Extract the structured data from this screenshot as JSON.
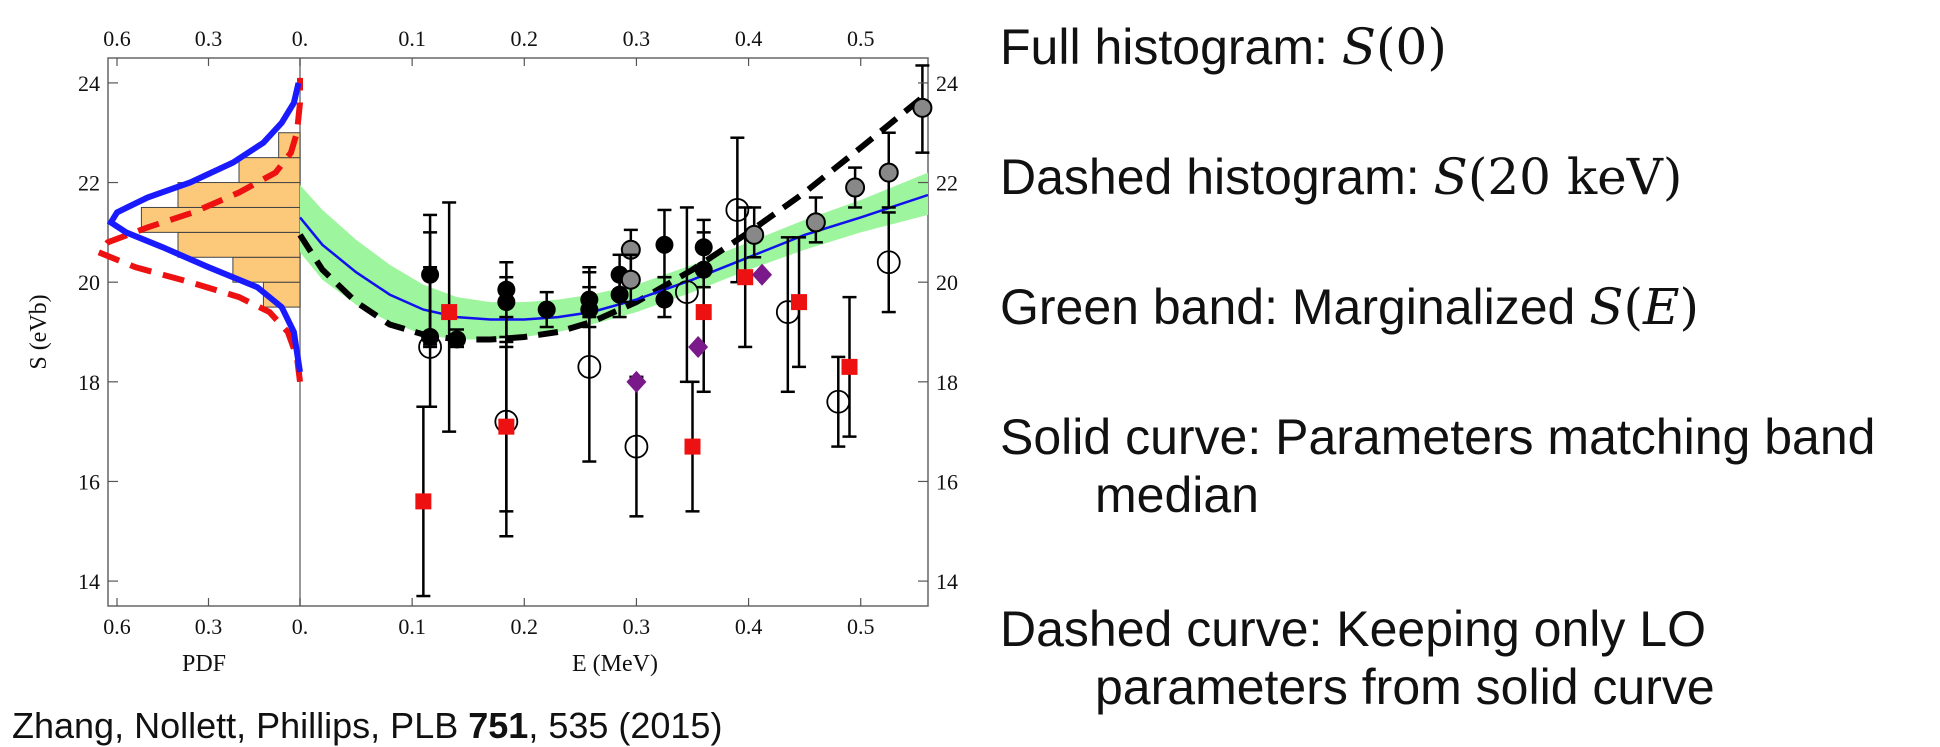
{
  "chart_data": {
    "type": "scatter",
    "xlabel": "E (MeV)",
    "ylabel": "S (eVb)",
    "pdf_label": "PDF",
    "xlim": [
      0,
      0.56
    ],
    "ylim": [
      13.5,
      24.5
    ],
    "x_ticks": [
      "0.",
      "0.1",
      "0.2",
      "0.3",
      "0.4",
      "0.5"
    ],
    "pdf_ticks": [
      "0.6",
      "0.3",
      "0."
    ],
    "y_ticks": [
      "14",
      "16",
      "18",
      "20",
      "22",
      "24"
    ],
    "histogram_full": {
      "bins": [
        {
          "y0": 19.5,
          "y1": 20.0,
          "pdf": 0.12
        },
        {
          "y0": 20.0,
          "y1": 20.5,
          "pdf": 0.22
        },
        {
          "y0": 20.5,
          "y1": 21.0,
          "pdf": 0.4
        },
        {
          "y0": 21.0,
          "y1": 21.5,
          "pdf": 0.52
        },
        {
          "y0": 21.5,
          "y1": 22.0,
          "pdf": 0.4
        },
        {
          "y0": 22.0,
          "y1": 22.5,
          "pdf": 0.2
        },
        {
          "y0": 22.5,
          "y1": 23.0,
          "pdf": 0.07
        }
      ],
      "color": "#fcc87a"
    },
    "pdf_curve_solid": {
      "points": [
        [
          18.2,
          0.0
        ],
        [
          18.6,
          0.01
        ],
        [
          19.0,
          0.02
        ],
        [
          19.5,
          0.06
        ],
        [
          19.9,
          0.14
        ],
        [
          20.3,
          0.3
        ],
        [
          20.7,
          0.45
        ],
        [
          21.0,
          0.57
        ],
        [
          21.2,
          0.62
        ],
        [
          21.4,
          0.6
        ],
        [
          21.7,
          0.5
        ],
        [
          22.0,
          0.36
        ],
        [
          22.4,
          0.22
        ],
        [
          22.8,
          0.12
        ],
        [
          23.2,
          0.06
        ],
        [
          23.6,
          0.02
        ],
        [
          24.0,
          0.005
        ]
      ],
      "color": "#1a1aff"
    },
    "pdf_curve_dashed": {
      "points": [
        [
          18.0,
          0.0
        ],
        [
          18.5,
          0.01
        ],
        [
          19.0,
          0.04
        ],
        [
          19.4,
          0.1
        ],
        [
          19.7,
          0.2
        ],
        [
          20.0,
          0.36
        ],
        [
          20.3,
          0.54
        ],
        [
          20.6,
          0.66
        ],
        [
          20.8,
          0.63
        ],
        [
          21.1,
          0.5
        ],
        [
          21.4,
          0.35
        ],
        [
          21.8,
          0.2
        ],
        [
          22.2,
          0.08
        ],
        [
          22.6,
          0.03
        ],
        [
          23.0,
          0.01
        ],
        [
          23.6,
          0.0
        ],
        [
          24.1,
          0.0
        ]
      ],
      "color": "#ee1111"
    },
    "band": {
      "x": [
        0,
        0.02,
        0.05,
        0.08,
        0.11,
        0.14,
        0.17,
        0.2,
        0.23,
        0.26,
        0.3,
        0.35,
        0.4,
        0.45,
        0.5,
        0.56
      ],
      "lower": [
        20.6,
        20.05,
        19.55,
        19.2,
        18.95,
        18.85,
        18.85,
        18.9,
        19.0,
        19.15,
        19.4,
        19.8,
        20.25,
        20.65,
        21.0,
        21.35
      ],
      "upper": [
        21.95,
        21.45,
        20.85,
        20.35,
        19.95,
        19.7,
        19.6,
        19.6,
        19.65,
        19.75,
        19.95,
        20.35,
        20.8,
        21.25,
        21.65,
        22.2
      ],
      "color": "#9df59d"
    },
    "solid_curve": {
      "x": [
        0,
        0.02,
        0.05,
        0.08,
        0.11,
        0.14,
        0.17,
        0.2,
        0.23,
        0.26,
        0.3,
        0.35,
        0.4,
        0.45,
        0.5,
        0.56
      ],
      "y": [
        21.3,
        20.75,
        20.2,
        19.75,
        19.45,
        19.3,
        19.25,
        19.25,
        19.3,
        19.4,
        19.65,
        20.05,
        20.5,
        20.95,
        21.3,
        21.75
      ],
      "color": "#1111ee"
    },
    "dashed_curve": {
      "x": [
        0,
        0.02,
        0.05,
        0.08,
        0.11,
        0.14,
        0.17,
        0.2,
        0.23,
        0.26,
        0.3,
        0.35,
        0.4,
        0.45,
        0.5,
        0.56
      ],
      "y": [
        20.95,
        20.25,
        19.6,
        19.15,
        18.95,
        18.85,
        18.85,
        18.9,
        19.0,
        19.2,
        19.6,
        20.25,
        21.0,
        21.8,
        22.7,
        23.8
      ],
      "color": "#000000"
    },
    "series": [
      {
        "marker": "black-circle",
        "points": [
          {
            "x": 0.116,
            "y": 20.15,
            "lo": 18.75,
            "hi": 21.35
          },
          {
            "x": 0.116,
            "y": 18.9,
            "lo": 18.7,
            "hi": 21.0
          },
          {
            "x": 0.14,
            "y": 18.85,
            "lo": 18.7,
            "hi": 19.05
          },
          {
            "x": 0.184,
            "y": 19.85,
            "lo": 18.7,
            "hi": 20.4
          },
          {
            "x": 0.184,
            "y": 19.6,
            "lo": 18.8,
            "hi": 20.1
          },
          {
            "x": 0.22,
            "y": 19.45,
            "lo": 19.1,
            "hi": 19.8
          },
          {
            "x": 0.258,
            "y": 19.65,
            "lo": 19.3,
            "hi": 20.2
          },
          {
            "x": 0.258,
            "y": 19.45,
            "lo": 19.1,
            "hi": 19.9
          },
          {
            "x": 0.285,
            "y": 20.15,
            "lo": 19.75,
            "hi": 20.55
          },
          {
            "x": 0.285,
            "y": 19.75,
            "lo": 19.3,
            "hi": 20.1
          },
          {
            "x": 0.325,
            "y": 20.75,
            "lo": 20.1,
            "hi": 21.45
          },
          {
            "x": 0.325,
            "y": 19.65,
            "lo": 19.3,
            "hi": 20.1
          },
          {
            "x": 0.36,
            "y": 20.7,
            "lo": 20.2,
            "hi": 21.25
          },
          {
            "x": 0.36,
            "y": 20.25,
            "lo": 19.9,
            "hi": 20.7
          }
        ]
      },
      {
        "marker": "gray-circle",
        "points": [
          {
            "x": 0.295,
            "y": 20.65,
            "lo": 20.15,
            "hi": 21.05
          },
          {
            "x": 0.295,
            "y": 20.05,
            "lo": 19.6,
            "hi": 20.55
          },
          {
            "x": 0.405,
            "y": 20.95,
            "lo": 20.5,
            "hi": 21.5
          },
          {
            "x": 0.46,
            "y": 21.2,
            "lo": 20.8,
            "hi": 21.7
          },
          {
            "x": 0.495,
            "y": 21.9,
            "lo": 21.5,
            "hi": 22.3
          },
          {
            "x": 0.525,
            "y": 22.2,
            "lo": 21.5,
            "hi": 23.0
          },
          {
            "x": 0.555,
            "y": 23.5,
            "lo": 22.6,
            "hi": 24.35
          }
        ]
      },
      {
        "marker": "open-circle",
        "points": [
          {
            "x": 0.116,
            "y": 18.7,
            "lo": 17.5,
            "hi": 20.3
          },
          {
            "x": 0.184,
            "y": 17.2,
            "lo": 15.4,
            "hi": 18.9
          },
          {
            "x": 0.258,
            "y": 18.3,
            "lo": 16.4,
            "hi": 20.3
          },
          {
            "x": 0.3,
            "y": 16.7,
            "lo": 15.3,
            "hi": 18.1
          },
          {
            "x": 0.345,
            "y": 19.8,
            "lo": 18.0,
            "hi": 21.5
          },
          {
            "x": 0.39,
            "y": 21.45,
            "lo": 20.0,
            "hi": 22.9
          },
          {
            "x": 0.435,
            "y": 19.4,
            "lo": 17.8,
            "hi": 20.9
          },
          {
            "x": 0.48,
            "y": 17.6,
            "lo": 16.7,
            "hi": 18.5
          },
          {
            "x": 0.525,
            "y": 20.4,
            "lo": 19.4,
            "hi": 21.4
          }
        ]
      },
      {
        "marker": "red-square",
        "points": [
          {
            "x": 0.11,
            "y": 15.6,
            "lo": 13.7,
            "hi": 17.5
          },
          {
            "x": 0.133,
            "y": 19.4,
            "lo": 17.0,
            "hi": 21.6
          },
          {
            "x": 0.184,
            "y": 17.1,
            "lo": 14.9,
            "hi": 19.3
          },
          {
            "x": 0.35,
            "y": 16.7,
            "lo": 15.4,
            "hi": 18.0
          },
          {
            "x": 0.36,
            "y": 19.4,
            "lo": 17.8,
            "hi": 21.0
          },
          {
            "x": 0.397,
            "y": 20.1,
            "lo": 18.7,
            "hi": 21.5
          },
          {
            "x": 0.445,
            "y": 19.6,
            "lo": 18.3,
            "hi": 20.9
          },
          {
            "x": 0.49,
            "y": 18.3,
            "lo": 16.9,
            "hi": 19.7
          }
        ]
      },
      {
        "marker": "purple-diamond",
        "points": [
          {
            "x": 0.3,
            "y": 18.0,
            "lo": 18.0,
            "hi": 18.0
          },
          {
            "x": 0.355,
            "y": 18.7,
            "lo": 18.7,
            "hi": 18.7
          },
          {
            "x": 0.412,
            "y": 20.15,
            "lo": 20.15,
            "hi": 20.15
          }
        ]
      }
    ]
  },
  "legend": [
    {
      "text": "Full histogram: ",
      "math": "S(0)"
    },
    {
      "text": "Dashed histogram: ",
      "math": "S(20 keV)"
    },
    {
      "text": "Green band: Marginalized ",
      "math": "S(E)"
    },
    {
      "text": "Solid curve: Parameters matching band",
      "cont": "median"
    },
    {
      "text": "Dashed curve: Keeping only LO",
      "cont": "parameters from solid curve"
    }
  ],
  "citation": {
    "before": "Zhang, Nollett, Phillips, PLB ",
    "volume": "751",
    "after": ", 535 (2015)"
  }
}
